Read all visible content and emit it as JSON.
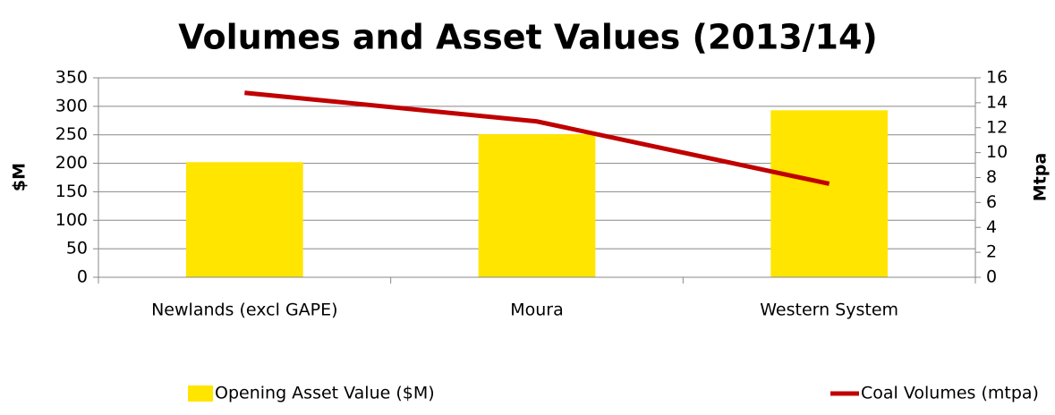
{
  "chart_data": {
    "type": "bar",
    "title": "Volumes and Asset Values (2013/14)",
    "categories": [
      "Newlands (excl GAPE)",
      "Moura",
      "Western System"
    ],
    "y_label": "$M",
    "y2_label": "Mtpa",
    "series": [
      {
        "name": "Opening Asset Value ($M)",
        "type": "bar",
        "color": "#ffe500",
        "values": [
          202,
          251,
          293
        ]
      },
      {
        "name": "Coal Volumes (mtpa)",
        "type": "line",
        "axis": "y2",
        "color": "#c00000",
        "values": [
          14.8,
          12.5,
          7.5
        ]
      }
    ],
    "ylim": [
      0,
      350
    ],
    "yticks": [
      0,
      50,
      100,
      150,
      200,
      250,
      300,
      350
    ],
    "y2lim": [
      0,
      16
    ],
    "y2ticks": [
      0,
      2,
      4,
      6,
      8,
      10,
      12,
      14,
      16
    ],
    "grid": true,
    "legend": "bottom"
  }
}
